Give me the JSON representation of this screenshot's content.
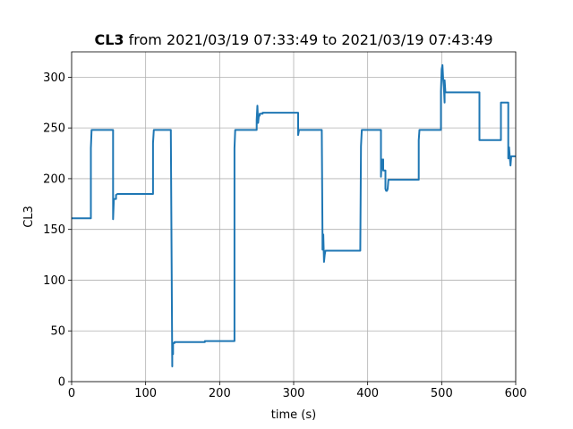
{
  "chart_data": {
    "type": "line",
    "title_bold": "CL3",
    "title_rest": " from 2021/03/19 07:33:49 to 2021/03/19 07:43:49",
    "xlabel": "time (s)",
    "ylabel": "CL3",
    "xlim": [
      0,
      600
    ],
    "ylim": [
      0,
      325
    ],
    "xticks": [
      0,
      100,
      200,
      300,
      400,
      500,
      600
    ],
    "yticks": [
      0,
      50,
      100,
      150,
      200,
      250,
      300
    ],
    "grid": true,
    "line_color": "#1f77b4",
    "series": [
      {
        "x": [
          0,
          26,
          26,
          27,
          28,
          56,
          56,
          57,
          57,
          60,
          60,
          62,
          62,
          110,
          110,
          111,
          112,
          134,
          136,
          136,
          137,
          137,
          139,
          139,
          180,
          180,
          220,
          220,
          221,
          222,
          250,
          250,
          251,
          252,
          253,
          254,
          254,
          258,
          258,
          300,
          306,
          306,
          307,
          307,
          337,
          338,
          339,
          339,
          340,
          341,
          342,
          343,
          343,
          390,
          391,
          392,
          392,
          418,
          418,
          419,
          420,
          421,
          421,
          424,
          424,
          425,
          426,
          427,
          428,
          428,
          433,
          433,
          469,
          469,
          470,
          471,
          471,
          499,
          499,
          500,
          501,
          502,
          503,
          504,
          504,
          505,
          505,
          551,
          551,
          580,
          580,
          590,
          590,
          591,
          592,
          593,
          594,
          600
        ],
        "y": [
          161,
          161,
          230,
          248,
          248,
          248,
          160,
          178,
          180,
          180,
          184,
          185,
          185,
          185,
          235,
          248,
          248,
          248,
          15,
          27,
          27,
          38,
          38,
          39,
          39,
          40,
          40,
          230,
          248,
          248,
          248,
          258,
          272,
          255,
          262,
          262,
          264,
          264,
          265,
          265,
          265,
          243,
          247,
          248,
          248,
          248,
          145,
          130,
          145,
          118,
          125,
          129,
          129,
          129,
          232,
          248,
          248,
          248,
          202,
          219,
          210,
          219,
          208,
          208,
          190,
          188,
          188,
          190,
          199,
          199,
          199,
          199,
          199,
          238,
          248,
          248,
          248,
          248,
          286,
          308,
          312,
          298,
          290,
          275,
          297,
          285,
          285,
          285,
          238,
          238,
          275,
          275,
          220,
          231,
          221,
          213,
          222,
          222
        ]
      }
    ]
  }
}
